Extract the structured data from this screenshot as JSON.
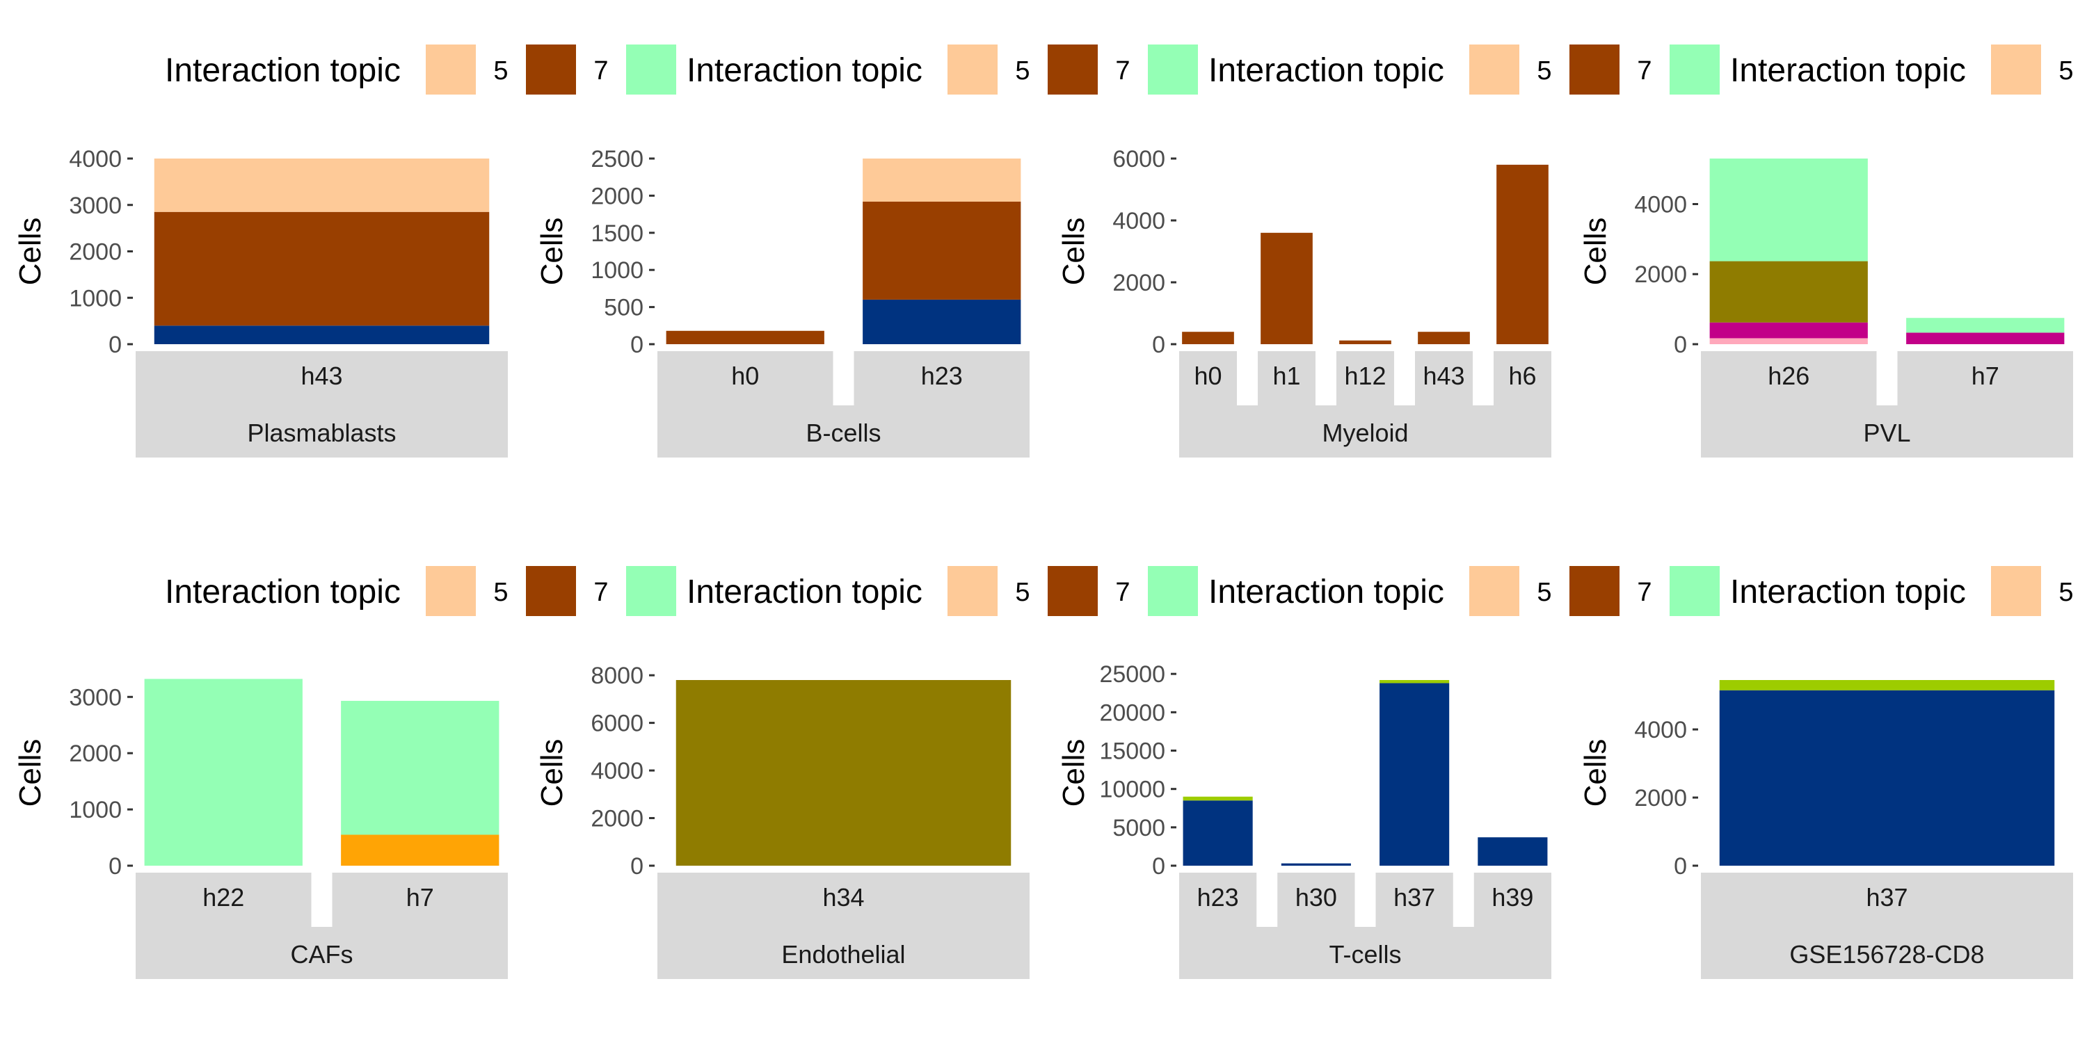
{
  "legend": {
    "title": "Interaction topic",
    "keys": [
      {
        "label": "5",
        "color": "#FECA98"
      },
      {
        "label": "7",
        "color": "#993F00"
      },
      {
        "label": "",
        "color": "#94FFB5"
      }
    ]
  },
  "chart_data": [
    {
      "type": "bar",
      "stacked": true,
      "facet": "Plasmablasts",
      "categories": [
        "h43"
      ],
      "ylabel": "Cells",
      "ylim": [
        0,
        4000
      ],
      "yticks": [
        0,
        1000,
        2000,
        3000,
        4000
      ],
      "grid": false,
      "series": [
        {
          "color": "#003380",
          "values": [
            400
          ]
        },
        {
          "color": "#993F00",
          "values": [
            2450
          ]
        },
        {
          "color": "#FECA98",
          "values": [
            1150
          ]
        }
      ]
    },
    {
      "type": "bar",
      "stacked": true,
      "facet": "B-cells",
      "categories": [
        "h0",
        "h23"
      ],
      "ylabel": "Cells",
      "ylim": [
        0,
        2500
      ],
      "yticks": [
        0,
        500,
        1000,
        1500,
        2000,
        2500
      ],
      "grid": false,
      "series": [
        {
          "color": "#003380",
          "values": [
            0,
            600
          ]
        },
        {
          "color": "#993F00",
          "values": [
            180,
            1320
          ]
        },
        {
          "color": "#FECA98",
          "values": [
            0,
            580
          ]
        }
      ]
    },
    {
      "type": "bar",
      "stacked": true,
      "facet": "Myeloid",
      "categories": [
        "h0",
        "h1",
        "h12",
        "h43",
        "h6"
      ],
      "ylabel": "Cells",
      "ylim": [
        0,
        6000
      ],
      "yticks": [
        0,
        2000,
        4000,
        6000
      ],
      "grid": false,
      "series": [
        {
          "color": "#993F00",
          "values": [
            400,
            3600,
            120,
            400,
            5800
          ]
        }
      ]
    },
    {
      "type": "bar",
      "stacked": true,
      "facet": "PVL",
      "categories": [
        "h26",
        "h7"
      ],
      "ylabel": "Cells",
      "ylim": [
        0,
        5300
      ],
      "yticks": [
        0,
        2000,
        4000
      ],
      "grid": false,
      "series": [
        {
          "color": "#FFA8BB",
          "values": [
            170,
            0
          ]
        },
        {
          "color": "#C20088",
          "values": [
            450,
            330
          ]
        },
        {
          "color": "#8F7C00",
          "values": [
            1750,
            0
          ]
        },
        {
          "color": "#94FFB5",
          "values": [
            2930,
            420
          ]
        }
      ]
    },
    {
      "type": "bar",
      "stacked": true,
      "facet": "CAFs",
      "categories": [
        "h22",
        "h7"
      ],
      "ylabel": "Cells",
      "ylim": [
        0,
        3300
      ],
      "yticks": [
        0,
        1000,
        2000,
        3000
      ],
      "grid": false,
      "series": [
        {
          "color": "#FFA405",
          "values": [
            0,
            550
          ]
        },
        {
          "color": "#94FFB5",
          "values": [
            3320,
            2380
          ]
        }
      ]
    },
    {
      "type": "bar",
      "stacked": true,
      "facet": "Endothelial",
      "categories": [
        "h34"
      ],
      "ylabel": "Cells",
      "ylim": [
        0,
        7800
      ],
      "yticks": [
        0,
        2000,
        4000,
        6000,
        8000
      ],
      "grid": false,
      "series": [
        {
          "color": "#8F7C00",
          "values": [
            7800
          ]
        }
      ]
    },
    {
      "type": "bar",
      "stacked": true,
      "facet": "T-cells",
      "categories": [
        "h23",
        "h30",
        "h37",
        "h39"
      ],
      "ylabel": "Cells",
      "ylim": [
        0,
        24200
      ],
      "yticks": [
        0,
        5000,
        10000,
        15000,
        20000,
        25000
      ],
      "grid": false,
      "series": [
        {
          "color": "#003380",
          "values": [
            8500,
            300,
            23800,
            3700
          ]
        },
        {
          "color": "#9DCC00",
          "values": [
            500,
            0,
            400,
            0
          ]
        }
      ]
    },
    {
      "type": "bar",
      "stacked": true,
      "facet": "GSE156728-CD8",
      "categories": [
        "h37"
      ],
      "ylabel": "Cells",
      "ylim": [
        0,
        5450
      ],
      "yticks": [
        0,
        2000,
        4000
      ],
      "grid": false,
      "series": [
        {
          "color": "#003380",
          "values": [
            5150
          ]
        },
        {
          "color": "#9DCC00",
          "values": [
            300
          ]
        }
      ]
    }
  ]
}
